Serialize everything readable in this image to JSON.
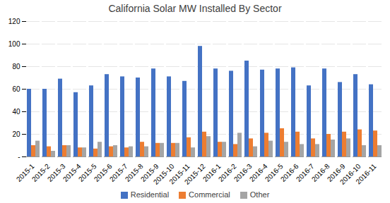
{
  "chart_data": {
    "type": "bar",
    "title": "California Solar MW Installed By Sector",
    "categories": [
      "2015-1",
      "2015-2",
      "2015-3",
      "2015-4",
      "2015-5",
      "2015-6",
      "2015-7",
      "2015-8",
      "2015-9",
      "2015-10",
      "2015-11",
      "2015-12",
      "2016-1",
      "2016-2",
      "2016-3",
      "2016-4",
      "2016-5",
      "2016-6",
      "2016-7",
      "2016-8",
      "2016-9",
      "2016-10",
      "2016-11"
    ],
    "series": [
      {
        "name": "Residential",
        "color": "#4472C4",
        "values": [
          60,
          60,
          69,
          57,
          63,
          73,
          71,
          70,
          78,
          71,
          67,
          98,
          78,
          76,
          85,
          77,
          78,
          79,
          63,
          78,
          66,
          73,
          64
        ]
      },
      {
        "name": "Commercial",
        "color": "#ED7D31",
        "values": [
          10,
          9,
          10,
          8,
          7,
          9,
          8,
          13,
          12,
          12,
          17,
          22,
          13,
          11,
          16,
          21,
          25,
          22,
          16,
          20,
          22,
          24,
          23
        ]
      },
      {
        "name": "Other",
        "color": "#A5A5A5",
        "values": [
          14,
          5,
          10,
          8,
          13,
          10,
          9,
          9,
          12,
          12,
          8,
          18,
          13,
          21,
          9,
          14,
          13,
          11,
          11,
          15,
          16,
          10,
          10
        ]
      }
    ],
    "ylim": [
      0,
      120
    ],
    "yticks": [
      {
        "value": 0,
        "label": "-"
      },
      20,
      40,
      60,
      80,
      100,
      120
    ],
    "grid": true,
    "legend": "bottom"
  }
}
